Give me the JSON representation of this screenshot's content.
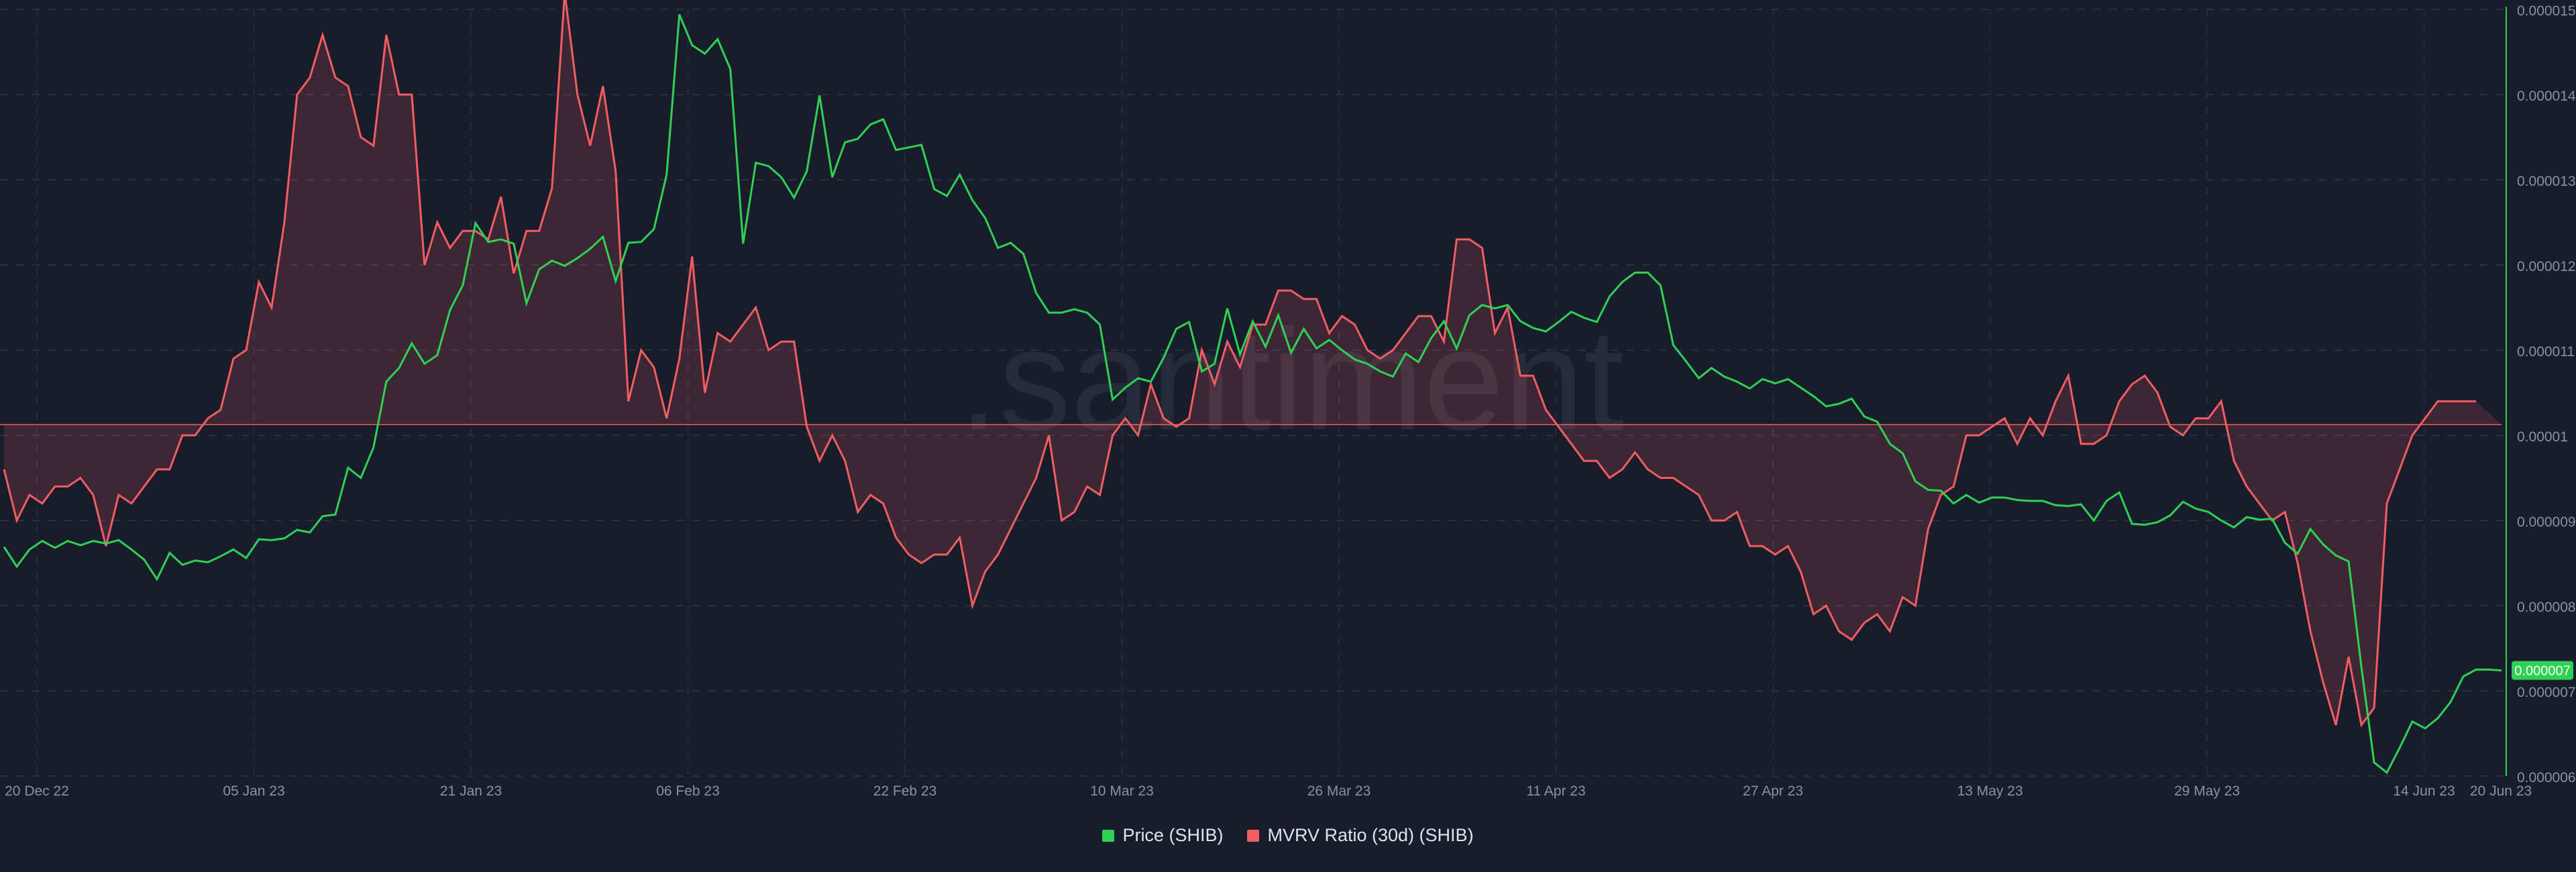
{
  "chart_data": {
    "type": "line",
    "watermark": ".santiment",
    "x_tick_labels": [
      "20 Dec 22",
      "05 Jan 23",
      "21 Jan 23",
      "06 Feb 23",
      "22 Feb 23",
      "10 Mar 23",
      "26 Mar 23",
      "11 Apr 23",
      "27 Apr 23",
      "13 May 23",
      "29 May 23",
      "14 Jun 23",
      "20 Jun 23"
    ],
    "y_tick_labels": [
      "0.000006",
      "0.000007",
      "0.000008",
      "0.000009",
      "0.00001",
      "0.000011",
      "0.000012",
      "0.000013",
      "0.000014",
      "0.000015"
    ],
    "ylim": [
      6e-06,
      1.5e-05
    ],
    "price_badge": "0.000007",
    "mvrv_baseline": 0,
    "series": [
      {
        "name": "Price (SHIB)",
        "color": "#2ed154",
        "values": [
          8.69e-06,
          8.46e-06,
          8.66e-06,
          8.76e-06,
          8.68e-06,
          8.76e-06,
          8.71e-06,
          8.76e-06,
          8.73e-06,
          8.77e-06,
          8.66e-06,
          8.54e-06,
          8.31e-06,
          8.62e-06,
          8.48e-06,
          8.53e-06,
          8.51e-06,
          8.58e-06,
          8.66e-06,
          8.56e-06,
          8.78e-06,
          8.77e-06,
          8.79e-06,
          8.89e-06,
          8.86e-06,
          9.05e-06,
          9.07e-06,
          9.62e-06,
          9.5e-06,
          9.86e-06,
          1.063e-05,
          1.079e-05,
          1.108e-05,
          1.084e-05,
          1.094e-05,
          1.147e-05,
          1.176e-05,
          1.249e-05,
          1.227e-05,
          1.23e-05,
          1.225e-05,
          1.155e-05,
          1.195e-05,
          1.205e-05,
          1.199e-05,
          1.208e-05,
          1.219e-05,
          1.233e-05,
          1.181e-05,
          1.226e-05,
          1.227e-05,
          1.242e-05,
          1.306e-05,
          1.494e-05,
          1.458e-05,
          1.448e-05,
          1.465e-05,
          1.43e-05,
          1.225e-05,
          1.32e-05,
          1.316e-05,
          1.303e-05,
          1.279e-05,
          1.31e-05,
          1.399e-05,
          1.303e-05,
          1.344e-05,
          1.348e-05,
          1.365e-05,
          1.371e-05,
          1.335e-05,
          1.338e-05,
          1.341e-05,
          1.289e-05,
          1.281e-05,
          1.306e-05,
          1.276e-05,
          1.255e-05,
          1.22e-05,
          1.226e-05,
          1.213e-05,
          1.167e-05,
          1.144e-05,
          1.144e-05,
          1.148e-05,
          1.144e-05,
          1.13e-05,
          1.042e-05,
          1.056e-05,
          1.067e-05,
          1.063e-05,
          1.091e-05,
          1.125e-05,
          1.133e-05,
          1.075e-05,
          1.084e-05,
          1.149e-05,
          1.095e-05,
          1.134e-05,
          1.104e-05,
          1.141e-05,
          1.097e-05,
          1.125e-05,
          1.102e-05,
          1.112e-05,
          1.1e-05,
          1.089e-05,
          1.084e-05,
          1.075e-05,
          1.069e-05,
          1.096e-05,
          1.086e-05,
          1.114e-05,
          1.134e-05,
          1.102e-05,
          1.141e-05,
          1.153e-05,
          1.149e-05,
          1.153e-05,
          1.134e-05,
          1.126e-05,
          1.122e-05,
          1.133e-05,
          1.145e-05,
          1.138e-05,
          1.133e-05,
          1.163e-05,
          1.18e-05,
          1.191e-05,
          1.191e-05,
          1.176e-05,
          1.106e-05,
          1.087e-05,
          1.067e-05,
          1.079e-05,
          1.069e-05,
          1.063e-05,
          1.055e-05,
          1.066e-05,
          1.061e-05,
          1.066e-05,
          1.056e-05,
          1.046e-05,
          1.034e-05,
          1.037e-05,
          1.043e-05,
          1.022e-05,
          1.016e-05,
          9.9e-06,
          9.79e-06,
          9.46e-06,
          9.36e-06,
          9.35e-06,
          9.2e-06,
          9.3e-06,
          9.21e-06,
          9.27e-06,
          9.27e-06,
          9.24e-06,
          9.23e-06,
          9.23e-06,
          9.18e-06,
          9.17e-06,
          9.19e-06,
          9e-06,
          9.23e-06,
          9.33e-06,
          8.96e-06,
          8.95e-06,
          8.98e-06,
          9.06e-06,
          9.22e-06,
          9.14e-06,
          9.1e-06,
          9e-06,
          8.92e-06,
          9.04e-06,
          9.01e-06,
          9.02e-06,
          8.74e-06,
          8.61e-06,
          8.9e-06,
          8.72e-06,
          8.59e-06,
          8.52e-06,
          7.28e-06,
          6.16e-06,
          6.04e-06,
          6.33e-06,
          6.64e-06,
          6.56e-06,
          6.68e-06,
          6.87e-06,
          7.17e-06,
          7.25e-06,
          7.25e-06,
          7.24e-06
        ]
      },
      {
        "name": "MVRV Ratio (30d) (SHIB)",
        "color": "#f15d60",
        "values": [
          9.6e-06,
          9e-06,
          9.3e-06,
          9.2e-06,
          9.4e-06,
          9.4e-06,
          9.5e-06,
          9.3e-06,
          8.7e-06,
          9.3e-06,
          9.2e-06,
          9.4e-06,
          9.6e-06,
          9.6e-06,
          1e-05,
          1e-05,
          1.02e-05,
          1.03e-05,
          1.09e-05,
          1.1e-05,
          1.18e-05,
          1.15e-05,
          1.25e-05,
          1.4e-05,
          1.42e-05,
          1.47e-05,
          1.42e-05,
          1.41e-05,
          1.35e-05,
          1.34e-05,
          1.47e-05,
          1.4e-05,
          1.4e-05,
          1.2e-05,
          1.25e-05,
          1.22e-05,
          1.24e-05,
          1.24e-05,
          1.23e-05,
          1.28e-05,
          1.19e-05,
          1.24e-05,
          1.24e-05,
          1.29e-05,
          1.52e-05,
          1.4e-05,
          1.34e-05,
          1.41e-05,
          1.31e-05,
          1.04e-05,
          1.1e-05,
          1.08e-05,
          1.02e-05,
          1.09e-05,
          1.21e-05,
          1.05e-05,
          1.12e-05,
          1.11e-05,
          1.13e-05,
          1.15e-05,
          1.1e-05,
          1.11e-05,
          1.11e-05,
          1.01e-05,
          9.7e-06,
          1e-05,
          9.7e-06,
          9.1e-06,
          9.3e-06,
          9.2e-06,
          8.8e-06,
          8.6e-06,
          8.5e-06,
          8.6e-06,
          8.6e-06,
          8.8e-06,
          8e-06,
          8.4e-06,
          8.6e-06,
          8.9e-06,
          9.2e-06,
          9.5e-06,
          1e-05,
          9e-06,
          9.1e-06,
          9.4e-06,
          9.3e-06,
          1e-05,
          1.02e-05,
          1e-05,
          1.06e-05,
          1.02e-05,
          1.01e-05,
          1.02e-05,
          1.1e-05,
          1.06e-05,
          1.11e-05,
          1.08e-05,
          1.13e-05,
          1.13e-05,
          1.17e-05,
          1.17e-05,
          1.16e-05,
          1.16e-05,
          1.12e-05,
          1.14e-05,
          1.13e-05,
          1.1e-05,
          1.09e-05,
          1.1e-05,
          1.12e-05,
          1.14e-05,
          1.14e-05,
          1.11e-05,
          1.23e-05,
          1.23e-05,
          1.22e-05,
          1.12e-05,
          1.15e-05,
          1.07e-05,
          1.07e-05,
          1.03e-05,
          1.01e-05,
          9.9e-06,
          9.7e-06,
          9.7e-06,
          9.5e-06,
          9.6e-06,
          9.8e-06,
          9.6e-06,
          9.5e-06,
          9.5e-06,
          9.4e-06,
          9.3e-06,
          9e-06,
          9e-06,
          9.1e-06,
          8.7e-06,
          8.7e-06,
          8.6e-06,
          8.7e-06,
          8.4e-06,
          7.9e-06,
          8e-06,
          7.7e-06,
          7.6e-06,
          7.8e-06,
          7.9e-06,
          7.7e-06,
          8.1e-06,
          8e-06,
          8.9e-06,
          9.3e-06,
          9.4e-06,
          1e-05,
          1e-05,
          1.01e-05,
          1.02e-05,
          9.9e-06,
          1.02e-05,
          1e-05,
          1.04e-05,
          1.07e-05,
          9.9e-06,
          9.9e-06,
          1e-05,
          1.04e-05,
          1.06e-05,
          1.07e-05,
          1.05e-05,
          1.01e-05,
          1e-05,
          1.02e-05,
          1.02e-05,
          1.04e-05,
          9.7e-06,
          9.4e-06,
          9.2e-06,
          9e-06,
          9.1e-06,
          8.5e-06,
          7.7e-06,
          7.1e-06,
          6.6e-06,
          7.4e-06,
          6.6e-06,
          6.8e-06,
          9.2e-06,
          9.6e-06,
          1e-05,
          1.02e-05,
          1.04e-05,
          1.04e-05,
          1.04e-05,
          1.04e-05
        ]
      }
    ],
    "legend": [
      {
        "name": "Price (SHIB)",
        "color": "#2ed154"
      },
      {
        "name": "MVRV Ratio (30d) (SHIB)",
        "color": "#f15d60"
      }
    ]
  }
}
